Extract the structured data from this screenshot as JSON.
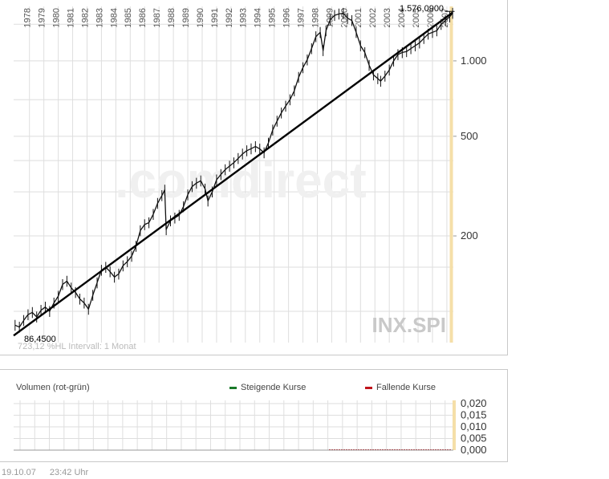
{
  "chart_data": {
    "type": "line",
    "title": "",
    "symbol": "INX.SPI",
    "watermark": ".comdirect",
    "scale": "log",
    "x_tick_labels": [
      "1978",
      "1979",
      "1980",
      "1981",
      "1982",
      "1983",
      "1984",
      "1985",
      "1986",
      "1987",
      "1988",
      "1989",
      "1990",
      "1991",
      "1992",
      "1993",
      "1994",
      "1995",
      "1996",
      "1997",
      "1998",
      "1999",
      "2000",
      "2001",
      "2002",
      "2003",
      "2004",
      "2005",
      "2006",
      "2007"
    ],
    "y_tick_labels": [
      {
        "value": 1000,
        "label": "1.000"
      },
      {
        "value": 500,
        "label": "500"
      },
      {
        "value": 200,
        "label": "200"
      }
    ],
    "ylim": [
      75,
      1650
    ],
    "xlim": [
      1977.3,
      2007.85
    ],
    "interval_label": "723,12 %HL Intervall: 1 Monat",
    "max_label": "1.576,0900",
    "min_label": "86,4500",
    "price_series": {
      "x": [
        1977.4,
        1977.7,
        1978.0,
        1978.3,
        1978.6,
        1978.9,
        1979.2,
        1979.5,
        1979.8,
        1980.1,
        1980.4,
        1980.7,
        1981.0,
        1981.3,
        1981.6,
        1981.9,
        1982.2,
        1982.5,
        1982.8,
        1983.1,
        1983.4,
        1983.7,
        1984.0,
        1984.3,
        1984.6,
        1984.9,
        1985.2,
        1985.5,
        1985.8,
        1986.1,
        1986.4,
        1986.7,
        1987.0,
        1987.3,
        1987.6,
        1987.8,
        1987.9,
        1988.2,
        1988.5,
        1988.8,
        1989.1,
        1989.4,
        1989.7,
        1990.0,
        1990.3,
        1990.6,
        1990.8,
        1991.1,
        1991.4,
        1991.7,
        1992.0,
        1992.3,
        1992.6,
        1992.9,
        1993.2,
        1993.5,
        1993.8,
        1994.1,
        1994.4,
        1994.7,
        1995.0,
        1995.3,
        1995.6,
        1995.9,
        1996.2,
        1996.5,
        1996.8,
        1997.1,
        1997.4,
        1997.7,
        1998.0,
        1998.3,
        1998.6,
        1998.8,
        1999.0,
        1999.3,
        1999.6,
        1999.9,
        2000.2,
        2000.5,
        2000.8,
        2001.1,
        2001.4,
        2001.7,
        2002.0,
        2002.3,
        2002.6,
        2002.8,
        2003.1,
        2003.4,
        2003.7,
        2004.0,
        2004.3,
        2004.6,
        2004.9,
        2005.2,
        2005.5,
        2005.8,
        2006.1,
        2006.4,
        2006.7,
        2007.0,
        2007.3,
        2007.6,
        2007.8
      ],
      "y": [
        88,
        86.5,
        92,
        97,
        99,
        95,
        101,
        104,
        100,
        108,
        115,
        128,
        132,
        124,
        119,
        112,
        108,
        102,
        116,
        130,
        146,
        150,
        144,
        137,
        141,
        152,
        158,
        166,
        182,
        210,
        222,
        226,
        244,
        270,
        290,
        305,
        212,
        230,
        236,
        242,
        262,
        292,
        315,
        325,
        332,
        308,
        276,
        300,
        335,
        352,
        368,
        380,
        392,
        408,
        425,
        438,
        446,
        455,
        445,
        430,
        470,
        530,
        575,
        620,
        660,
        700,
        760,
        860,
        940,
        1010,
        1120,
        1250,
        1300,
        1100,
        1320,
        1460,
        1520,
        1540,
        1550,
        1480,
        1450,
        1300,
        1150,
        1080,
        960,
        880,
        850,
        830,
        870,
        920,
        1000,
        1060,
        1080,
        1090,
        1120,
        1150,
        1180,
        1230,
        1280,
        1300,
        1320,
        1400,
        1450,
        1500,
        1550
      ]
    },
    "trend_line": {
      "x": [
        1977.3,
        2007.8
      ],
      "y": [
        80,
        1560
      ]
    },
    "volume": {
      "title": "Volumen (rot-grün)",
      "legend": [
        {
          "name": "Steigende Kurse",
          "color": "#1a7a2a"
        },
        {
          "name": "Fallende Kurse",
          "color": "#c0141c"
        }
      ],
      "y_tick_labels": [
        "0,020",
        "0,015",
        "0,010",
        "0,005",
        "0,000"
      ],
      "ylim": [
        0,
        0.022
      ]
    }
  },
  "colors": {
    "grid": "#dedede",
    "line": "#111111",
    "highlight": "#f5dfa8",
    "watermark": "#f0f0f0",
    "watermark_accent": "#fbeedb"
  },
  "footer": {
    "date": "19.10.07",
    "time": "23:42 Uhr"
  }
}
